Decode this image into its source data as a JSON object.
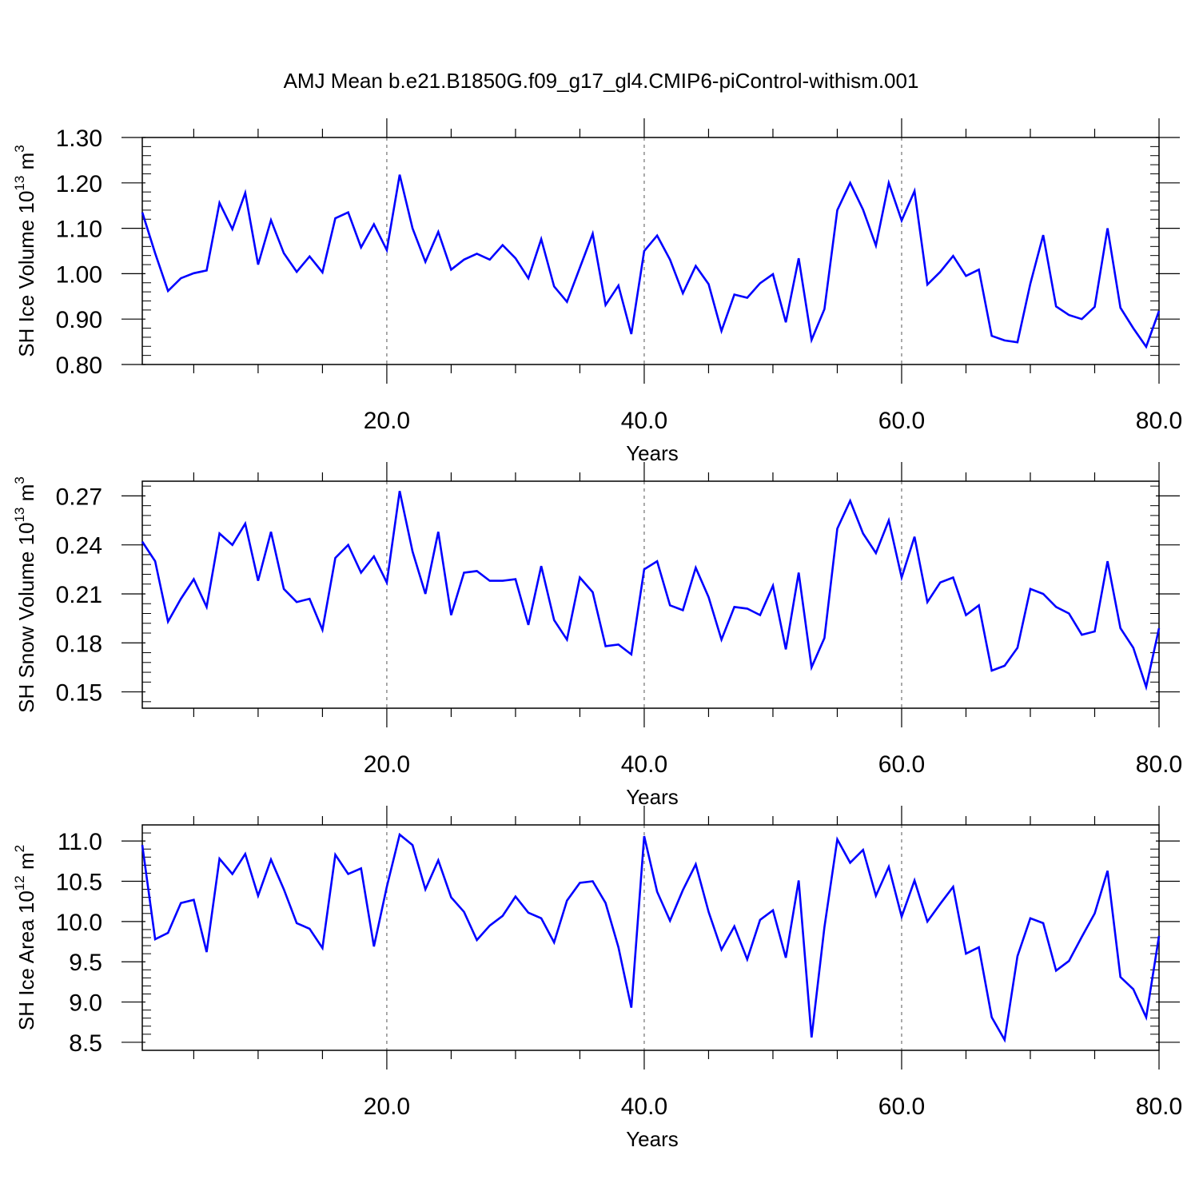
{
  "title": "AMJ Mean b.e21.B1850G.f09_g17_gl4.CMIP6-piControl-withism.001",
  "colors": {
    "line": "#0000ff",
    "axis": "#000000",
    "grid": "#555555"
  },
  "chart_data": [
    {
      "type": "line",
      "ylabel": {
        "text": "SH Ice Volume 10",
        "exp1": "13",
        "mid": " m",
        "exp2": "3"
      },
      "xlabel": "Years",
      "xlim": [
        1,
        80
      ],
      "xticks": [
        20,
        40,
        60,
        80
      ],
      "xtick_labels": [
        "20.0",
        "40.0",
        "60.0",
        "80.0"
      ],
      "ylim": [
        0.8,
        1.3
      ],
      "yticks": [
        0.8,
        0.9,
        1.0,
        1.1,
        1.2,
        1.3
      ],
      "ytick_labels": [
        "0.80",
        "0.90",
        "1.00",
        "1.10",
        "1.20",
        "1.30"
      ],
      "grid": "dashed vertical at major x ticks",
      "series": [
        {
          "x_start": 1,
          "values": [
            1.135,
            1.045,
            0.962,
            0.99,
            1.001,
            1.007,
            1.156,
            1.098,
            1.178,
            1.02,
            1.118,
            1.045,
            1.004,
            1.038,
            1.003,
            1.122,
            1.135,
            1.058,
            1.109,
            1.052,
            1.218,
            1.1,
            1.026,
            1.092,
            1.009,
            1.031,
            1.044,
            1.031,
            1.063,
            1.034,
            0.99,
            1.076,
            0.972,
            0.938,
            1.013,
            1.088,
            0.931,
            0.974,
            0.867,
            1.05,
            1.084,
            1.031,
            0.957,
            1.017,
            0.977,
            0.874,
            0.954,
            0.947,
            0.979,
            0.999,
            0.893,
            1.034,
            0.854,
            0.922,
            1.14,
            1.2,
            1.141,
            1.062,
            1.2,
            1.117,
            1.182,
            0.976,
            1.004,
            1.039,
            0.995,
            1.009,
            0.863,
            0.853,
            0.849,
            0.978,
            1.085,
            0.928,
            0.909,
            0.9,
            0.927,
            1.1,
            0.925,
            0.88,
            0.839,
            0.918
          ]
        }
      ]
    },
    {
      "type": "line",
      "ylabel": {
        "text": "SH Snow Volume 10",
        "exp1": "13",
        "mid": " m",
        "exp2": "3"
      },
      "xlabel": "Years",
      "xlim": [
        1,
        80
      ],
      "xticks": [
        20,
        40,
        60,
        80
      ],
      "xtick_labels": [
        "20.0",
        "40.0",
        "60.0",
        "80.0"
      ],
      "ylim": [
        0.14,
        0.279
      ],
      "yticks": [
        0.15,
        0.18,
        0.21,
        0.24,
        0.27
      ],
      "ytick_labels": [
        "0.15",
        "0.18",
        "0.21",
        "0.24",
        "0.27"
      ],
      "grid": "dashed vertical at major x ticks",
      "series": [
        {
          "x_start": 1,
          "values": [
            0.242,
            0.23,
            0.193,
            0.207,
            0.219,
            0.202,
            0.247,
            0.24,
            0.253,
            0.218,
            0.248,
            0.213,
            0.205,
            0.207,
            0.188,
            0.232,
            0.24,
            0.223,
            0.233,
            0.217,
            0.273,
            0.236,
            0.21,
            0.248,
            0.197,
            0.223,
            0.224,
            0.218,
            0.218,
            0.219,
            0.191,
            0.227,
            0.194,
            0.182,
            0.22,
            0.211,
            0.178,
            0.179,
            0.173,
            0.225,
            0.23,
            0.203,
            0.2,
            0.226,
            0.208,
            0.182,
            0.202,
            0.201,
            0.197,
            0.215,
            0.176,
            0.223,
            0.165,
            0.183,
            0.25,
            0.267,
            0.247,
            0.235,
            0.255,
            0.22,
            0.245,
            0.205,
            0.217,
            0.22,
            0.197,
            0.203,
            0.163,
            0.166,
            0.177,
            0.213,
            0.21,
            0.202,
            0.198,
            0.185,
            0.187,
            0.23,
            0.189,
            0.177,
            0.153,
            0.189
          ]
        }
      ]
    },
    {
      "type": "line",
      "ylabel": {
        "text": "SH Ice Area 10",
        "exp1": "12",
        "mid": " m",
        "exp2": "2"
      },
      "xlabel": "Years",
      "xlim": [
        1,
        80
      ],
      "xticks": [
        20,
        40,
        60,
        80
      ],
      "xtick_labels": [
        "20.0",
        "40.0",
        "60.0",
        "80.0"
      ],
      "ylim": [
        8.4,
        11.2
      ],
      "yticks": [
        8.5,
        9.0,
        9.5,
        10.0,
        10.5,
        11.0
      ],
      "ytick_labels": [
        "8.5",
        "9.0",
        "9.5",
        "10.0",
        "10.5",
        "11.0"
      ],
      "grid": "dashed vertical at major x ticks",
      "series": [
        {
          "x_start": 1,
          "values": [
            10.95,
            9.78,
            9.86,
            10.23,
            10.27,
            9.62,
            10.78,
            10.59,
            10.84,
            10.32,
            10.77,
            10.4,
            9.98,
            9.91,
            9.67,
            10.83,
            10.59,
            10.66,
            9.69,
            10.43,
            11.08,
            10.95,
            10.4,
            10.76,
            10.3,
            10.12,
            9.77,
            9.95,
            10.07,
            10.31,
            10.11,
            10.04,
            9.74,
            10.26,
            10.48,
            10.5,
            10.23,
            9.68,
            8.93,
            11.06,
            10.37,
            10.01,
            10.39,
            10.71,
            10.12,
            9.65,
            9.94,
            9.53,
            10.02,
            10.14,
            9.55,
            10.51,
            8.56,
            9.93,
            11.02,
            10.73,
            10.89,
            10.32,
            10.68,
            10.06,
            10.51,
            10.0,
            10.22,
            10.43,
            9.6,
            9.68,
            8.81,
            8.53,
            9.57,
            10.04,
            9.98,
            9.39,
            9.51,
            9.81,
            10.1,
            10.63,
            9.31,
            9.16,
            8.81,
            9.82
          ]
        }
      ]
    }
  ]
}
